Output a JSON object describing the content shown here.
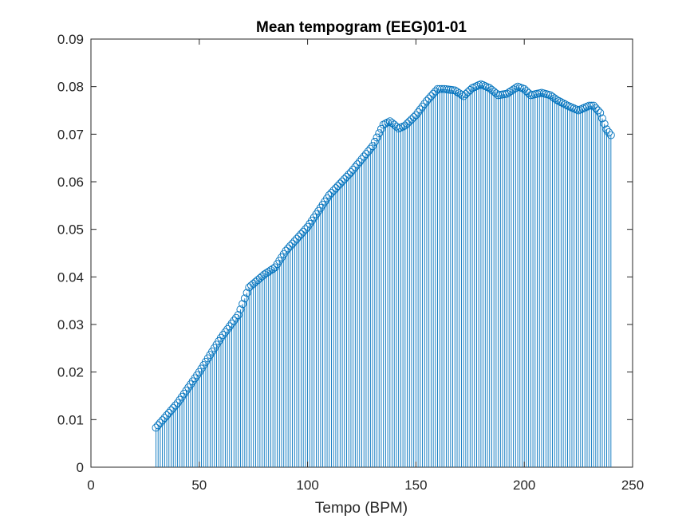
{
  "chart_data": {
    "type": "stem",
    "title": "Mean tempogram (EEG)01-01",
    "xlabel": "Tempo (BPM)",
    "ylabel": "",
    "xlim": [
      0,
      250
    ],
    "ylim": [
      0,
      0.09
    ],
    "xticks": [
      "0",
      "50",
      "100",
      "150",
      "200",
      "250"
    ],
    "yticks": [
      "0",
      "0.01",
      "0.02",
      "0.03",
      "0.04",
      "0.05",
      "0.06",
      "0.07",
      "0.08",
      "0.09"
    ],
    "x_start": 30,
    "x_end": 240,
    "x_step": 1,
    "keypoints": [
      [
        30,
        0.0083
      ],
      [
        40,
        0.0135
      ],
      [
        50,
        0.02
      ],
      [
        60,
        0.0272
      ],
      [
        68,
        0.032
      ],
      [
        73,
        0.0378
      ],
      [
        80,
        0.0405
      ],
      [
        85,
        0.042
      ],
      [
        90,
        0.0455
      ],
      [
        100,
        0.0505
      ],
      [
        110,
        0.0572
      ],
      [
        120,
        0.062
      ],
      [
        130,
        0.0675
      ],
      [
        135,
        0.072
      ],
      [
        138,
        0.0727
      ],
      [
        140,
        0.072
      ],
      [
        142,
        0.0712
      ],
      [
        145,
        0.0718
      ],
      [
        150,
        0.074
      ],
      [
        155,
        0.077
      ],
      [
        160,
        0.0795
      ],
      [
        163,
        0.0795
      ],
      [
        168,
        0.0792
      ],
      [
        172,
        0.078
      ],
      [
        176,
        0.0797
      ],
      [
        180,
        0.0805
      ],
      [
        184,
        0.0797
      ],
      [
        188,
        0.0782
      ],
      [
        192,
        0.0785
      ],
      [
        197,
        0.08
      ],
      [
        200,
        0.0795
      ],
      [
        203,
        0.0782
      ],
      [
        208,
        0.0787
      ],
      [
        212,
        0.0782
      ],
      [
        215,
        0.0772
      ],
      [
        220,
        0.076
      ],
      [
        225,
        0.075
      ],
      [
        230,
        0.076
      ],
      [
        232,
        0.076
      ],
      [
        235,
        0.0745
      ],
      [
        238,
        0.071
      ],
      [
        240,
        0.0698
      ]
    ],
    "series_color": "#0072BD",
    "grid": false
  }
}
